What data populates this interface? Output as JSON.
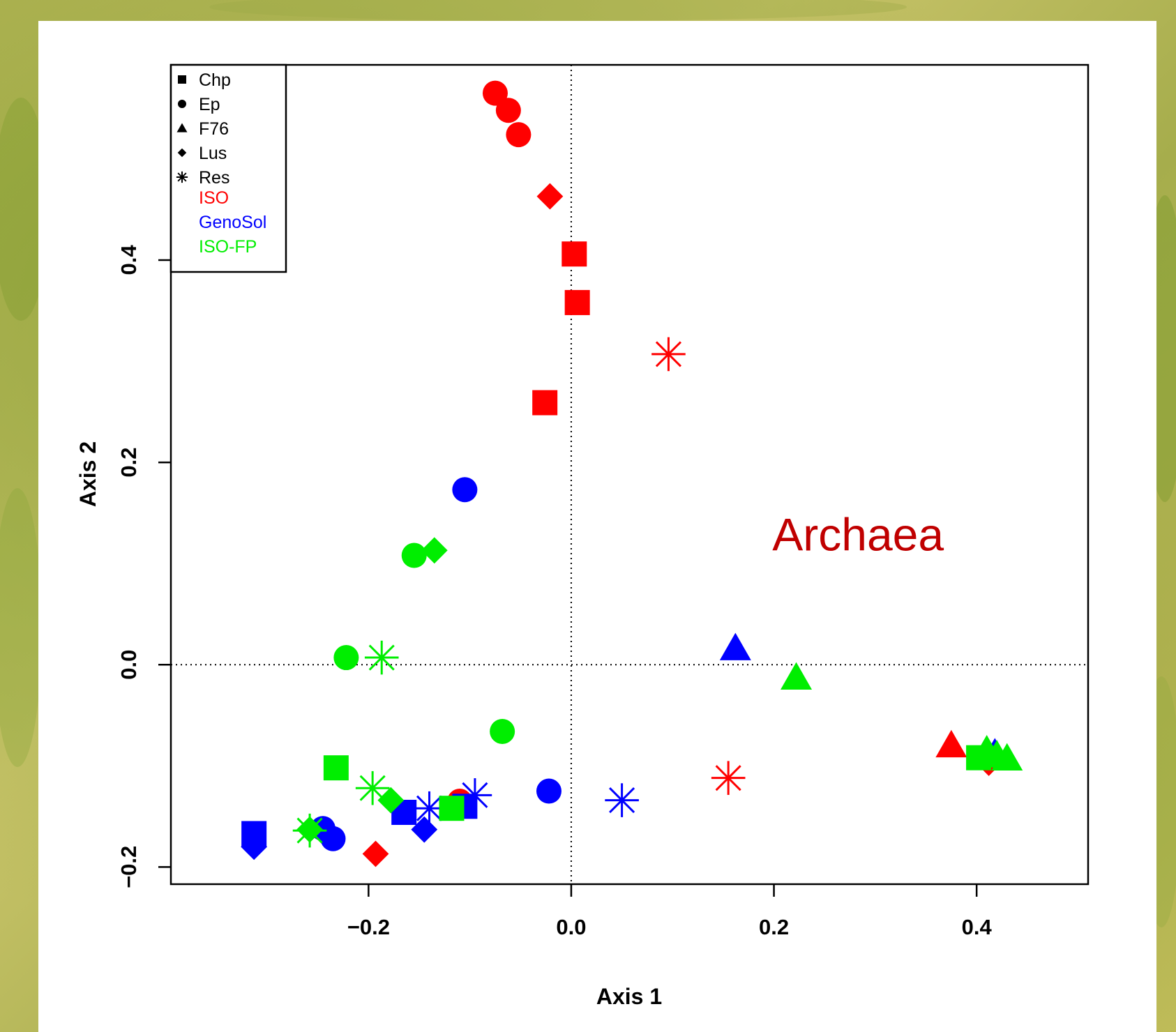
{
  "chart_data": {
    "type": "scatter",
    "title": "",
    "xlabel": "Axis 1",
    "ylabel": "Axis 2",
    "xlim": [
      -0.395,
      0.51
    ],
    "ylim": [
      -0.217,
      0.593
    ],
    "xticks": [
      -0.2,
      0.0,
      0.2,
      0.4
    ],
    "yticks": [
      -0.2,
      0.0,
      0.2,
      0.4
    ],
    "xtick_labels": [
      "−0.2",
      "0.0",
      "0.2",
      "0.4"
    ],
    "ytick_labels": [
      "−0.2",
      "0.0",
      "0.2",
      "0.4"
    ],
    "reference_lines": {
      "x": 0,
      "y": 0,
      "style": "dotted"
    },
    "annotation": {
      "text": "Archaea",
      "x": 0.283,
      "y": 0.128,
      "color": "#c00000"
    },
    "legend": {
      "placement": "top-left",
      "shapes": [
        {
          "label": "Chp",
          "shape": "square"
        },
        {
          "label": "Ep",
          "shape": "circle"
        },
        {
          "label": "F76",
          "shape": "triangle"
        },
        {
          "label": "Lus",
          "shape": "diamond"
        },
        {
          "label": "Res",
          "shape": "asterisk"
        }
      ],
      "groups": [
        {
          "label": "ISO",
          "color": "#ff0000"
        },
        {
          "label": "GenoSol",
          "color": "#0000ff"
        },
        {
          "label": "ISO-FP",
          "color": "#00ee00"
        }
      ]
    },
    "series": [
      {
        "name": "ISO",
        "color": "#ff0000",
        "points": [
          {
            "x": -0.075,
            "y": 0.565,
            "shape": "circle"
          },
          {
            "x": -0.062,
            "y": 0.548,
            "shape": "circle"
          },
          {
            "x": -0.052,
            "y": 0.524,
            "shape": "circle"
          },
          {
            "x": -0.021,
            "y": 0.463,
            "shape": "diamond"
          },
          {
            "x": 0.003,
            "y": 0.406,
            "shape": "square"
          },
          {
            "x": 0.006,
            "y": 0.358,
            "shape": "square"
          },
          {
            "x": 0.096,
            "y": 0.307,
            "shape": "asterisk"
          },
          {
            "x": -0.026,
            "y": 0.259,
            "shape": "square"
          },
          {
            "x": 0.155,
            "y": -0.112,
            "shape": "asterisk"
          },
          {
            "x": -0.193,
            "y": -0.187,
            "shape": "diamond"
          },
          {
            "x": 0.375,
            "y": -0.08,
            "shape": "triangle"
          },
          {
            "x": 0.412,
            "y": -0.097,
            "shape": "diamond"
          },
          {
            "x": -0.11,
            "y": -0.135,
            "shape": "circle"
          }
        ]
      },
      {
        "name": "GenoSol",
        "color": "#0000ff",
        "points": [
          {
            "x": -0.105,
            "y": 0.173,
            "shape": "circle"
          },
          {
            "x": 0.162,
            "y": 0.016,
            "shape": "triangle"
          },
          {
            "x": -0.022,
            "y": -0.125,
            "shape": "circle"
          },
          {
            "x": 0.05,
            "y": -0.134,
            "shape": "asterisk"
          },
          {
            "x": -0.095,
            "y": -0.129,
            "shape": "asterisk"
          },
          {
            "x": -0.14,
            "y": -0.142,
            "shape": "asterisk"
          },
          {
            "x": -0.105,
            "y": -0.14,
            "shape": "square"
          },
          {
            "x": -0.165,
            "y": -0.146,
            "shape": "square"
          },
          {
            "x": -0.145,
            "y": -0.163,
            "shape": "diamond"
          },
          {
            "x": -0.235,
            "y": -0.172,
            "shape": "circle"
          },
          {
            "x": -0.245,
            "y": -0.162,
            "shape": "circle"
          },
          {
            "x": -0.313,
            "y": -0.167,
            "shape": "square"
          },
          {
            "x": -0.313,
            "y": -0.18,
            "shape": "diamond"
          },
          {
            "x": 0.418,
            "y": -0.088,
            "shape": "triangle"
          }
        ]
      },
      {
        "name": "ISO-FP",
        "color": "#00ee00",
        "points": [
          {
            "x": -0.155,
            "y": 0.108,
            "shape": "circle"
          },
          {
            "x": -0.135,
            "y": 0.113,
            "shape": "diamond"
          },
          {
            "x": -0.222,
            "y": 0.007,
            "shape": "circle"
          },
          {
            "x": -0.187,
            "y": 0.007,
            "shape": "asterisk"
          },
          {
            "x": 0.222,
            "y": -0.013,
            "shape": "triangle"
          },
          {
            "x": -0.068,
            "y": -0.066,
            "shape": "circle"
          },
          {
            "x": -0.232,
            "y": -0.102,
            "shape": "square"
          },
          {
            "x": -0.196,
            "y": -0.122,
            "shape": "asterisk"
          },
          {
            "x": -0.178,
            "y": -0.134,
            "shape": "diamond"
          },
          {
            "x": -0.118,
            "y": -0.142,
            "shape": "square"
          },
          {
            "x": -0.258,
            "y": -0.164,
            "shape": "asterisk"
          },
          {
            "x": -0.258,
            "y": -0.163,
            "shape": "diamond"
          },
          {
            "x": 0.402,
            "y": -0.092,
            "shape": "square"
          },
          {
            "x": 0.41,
            "y": -0.085,
            "shape": "triangle"
          },
          {
            "x": 0.42,
            "y": -0.09,
            "shape": "triangle"
          },
          {
            "x": 0.43,
            "y": -0.093,
            "shape": "triangle"
          }
        ]
      }
    ]
  }
}
